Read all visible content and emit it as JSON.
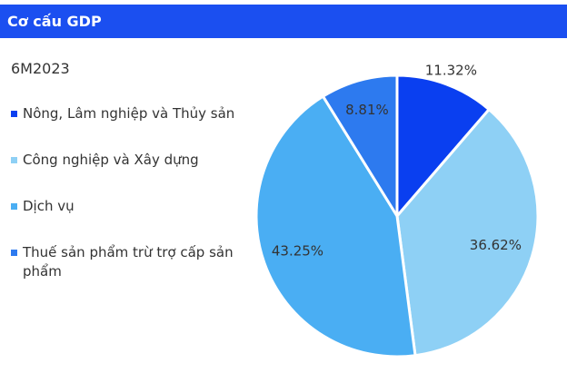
{
  "chart_data": {
    "type": "pie",
    "title": "Cơ cấu GDP",
    "subtitle": "6M2023",
    "categories": [
      "Nông, Lâm nghiệp và Thủy sản",
      "Công nghiệp và Xây dựng",
      "Dịch vụ",
      "Thuế sản phẩm trừ trợ cấp sản phẩm"
    ],
    "values": [
      11.32,
      36.62,
      43.25,
      8.81
    ],
    "value_labels": [
      "11.32%",
      "36.62%",
      "43.25%",
      "8.81%"
    ],
    "colors": [
      "#0a3ff0",
      "#8ed0f5",
      "#4aaef3",
      "#2d7aef"
    ],
    "legend": "left"
  }
}
